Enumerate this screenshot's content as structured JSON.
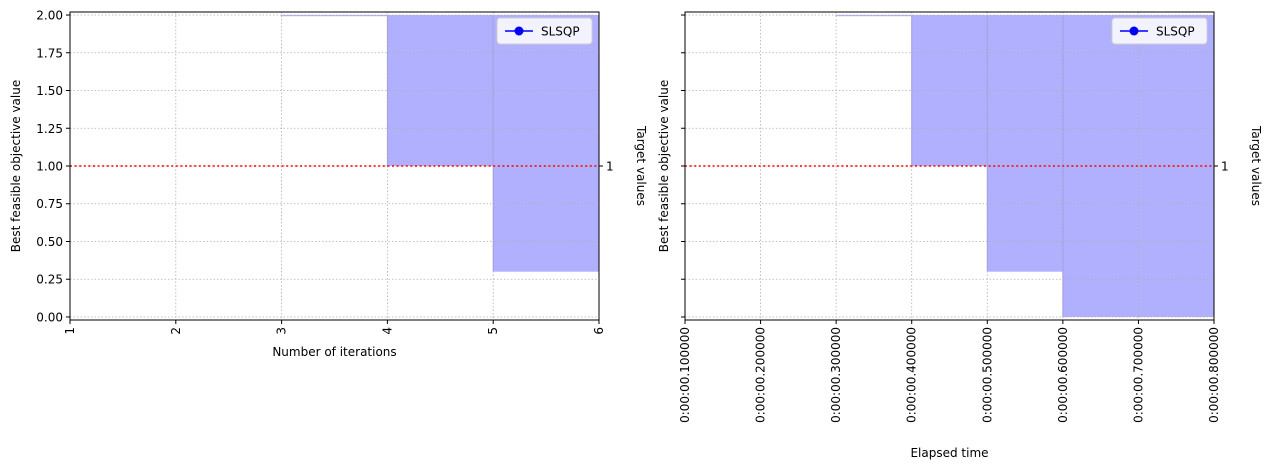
{
  "chart_data": [
    {
      "type": "area",
      "xlabel": "Number of iterations",
      "ylabel": "Best feasible objective value",
      "right_label": "Target values",
      "xlim": [
        1,
        6
      ],
      "ylim": [
        -0.02,
        2.02
      ],
      "xticks": [
        1,
        2,
        3,
        4,
        5,
        6
      ],
      "xtick_labels": [
        "1",
        "2",
        "3",
        "4",
        "5",
        "6"
      ],
      "yticks": [
        0.0,
        0.25,
        0.5,
        0.75,
        1.0,
        1.25,
        1.5,
        1.75,
        2.0
      ],
      "ytick_labels": [
        "0.00",
        "0.25",
        "0.50",
        "0.75",
        "1.00",
        "1.25",
        "1.50",
        "1.75",
        "2.00"
      ],
      "target": {
        "value": 1.0,
        "label": "1"
      },
      "grid": true,
      "legend_position": "top-right",
      "series": [
        {
          "name": "SLSQP",
          "steps": [
            {
              "x0": 3,
              "x1": 4,
              "low": 2.0,
              "high": 2.0
            },
            {
              "x0": 4,
              "x1": 5,
              "low": 1.0,
              "high": 2.0
            },
            {
              "x0": 5,
              "x1": 6,
              "low": 0.3,
              "high": 2.0
            }
          ]
        }
      ]
    },
    {
      "type": "area",
      "xlabel": "Elapsed time",
      "ylabel": "Best feasible objective value",
      "right_label": "Target values",
      "xlim": [
        0.1,
        0.8
      ],
      "ylim": [
        -0.02,
        2.02
      ],
      "xticks": [
        0.1,
        0.2,
        0.3,
        0.4,
        0.5,
        0.6,
        0.7,
        0.8
      ],
      "xtick_labels": [
        "0:00:00.100000",
        "0:00:00.200000",
        "0:00:00.300000",
        "0:00:00.400000",
        "0:00:00.500000",
        "0:00:00.600000",
        "0:00:00.700000",
        "0:00:00.800000"
      ],
      "yticks": [
        0.0,
        0.25,
        0.5,
        0.75,
        1.0,
        1.25,
        1.5,
        1.75,
        2.0
      ],
      "ytick_labels": [],
      "target": {
        "value": 1.0,
        "label": "1"
      },
      "grid": true,
      "legend_position": "top-right",
      "series": [
        {
          "name": "SLSQP",
          "steps": [
            {
              "x0": 0.3,
              "x1": 0.4,
              "low": 2.0,
              "high": 2.0
            },
            {
              "x0": 0.4,
              "x1": 0.5,
              "low": 1.0,
              "high": 2.0
            },
            {
              "x0": 0.5,
              "x1": 0.6,
              "low": 0.3,
              "high": 2.0
            },
            {
              "x0": 0.6,
              "x1": 0.8,
              "low": 0.0,
              "high": 2.0
            }
          ]
        }
      ]
    }
  ],
  "colors": {
    "series": "#0000ff",
    "fill": "#b0b0ff",
    "target": "#ff0000",
    "grid": "#b0b0b0"
  }
}
